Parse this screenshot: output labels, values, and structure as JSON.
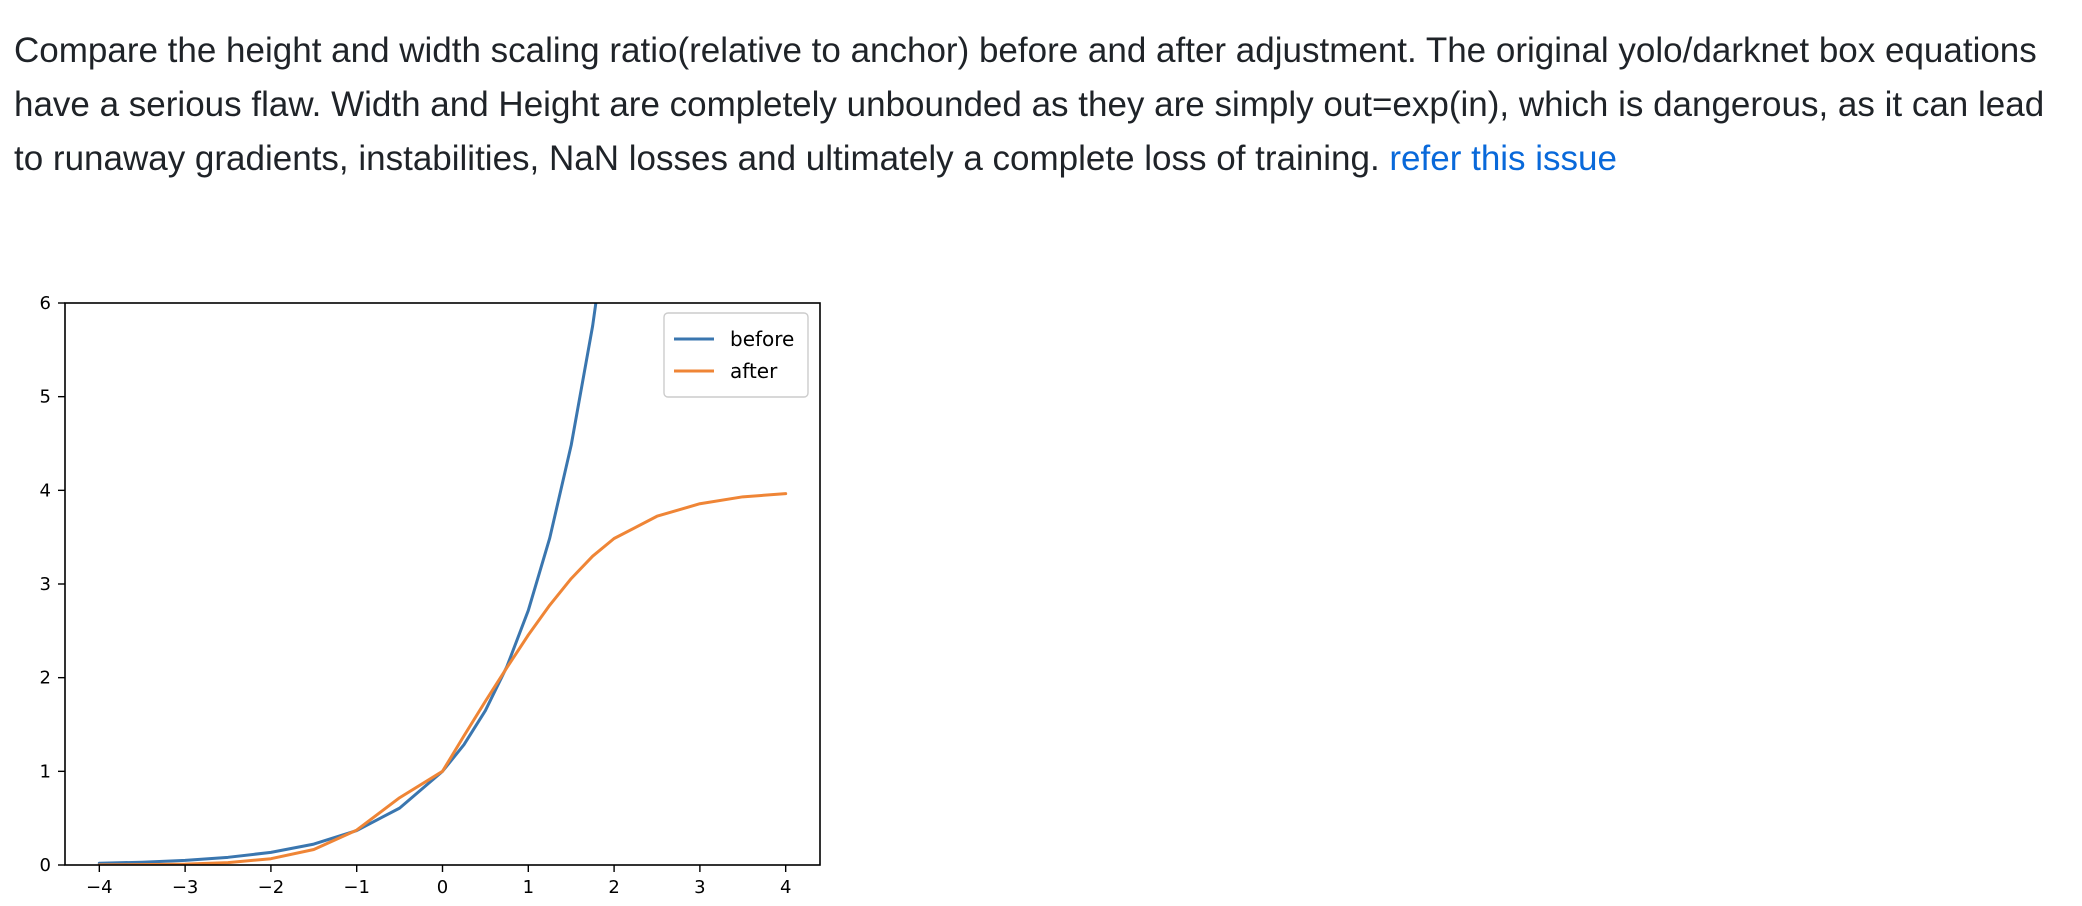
{
  "text": {
    "paragraph": "Compare the height and width scaling ratio(relative to anchor) before and after adjustment. The original yolo/darknet box equations have a serious flaw. Width and Height are completely unbounded as they are simply out=exp(in), which is dangerous, as it can lead to runaway gradients, instabilities, NaN losses and ultimately a complete loss of training.",
    "link": "refer this issue"
  },
  "chart_data": {
    "type": "line",
    "title": "",
    "xlabel": "",
    "ylabel": "",
    "xlim": [
      -4.4,
      4.4
    ],
    "ylim": [
      0,
      6
    ],
    "grid": false,
    "legend_position": "top-right",
    "x_ticks": [
      "−4",
      "−3",
      "−2",
      "−1",
      "0",
      "1",
      "2",
      "3",
      "4"
    ],
    "y_ticks": [
      "0",
      "1",
      "2",
      "3",
      "4",
      "5",
      "6"
    ],
    "x": [
      -4,
      -3.5,
      -3,
      -2.5,
      -2,
      -1.5,
      -1,
      -0.5,
      0,
      0.25,
      0.5,
      0.75,
      1,
      1.25,
      1.5,
      1.75,
      2,
      2.5,
      3,
      3.5,
      4
    ],
    "series": [
      {
        "name": "before",
        "color": "#3a76af",
        "values": [
          0.018,
          0.03,
          0.05,
          0.082,
          0.135,
          0.223,
          0.368,
          0.607,
          1.0,
          1.284,
          1.649,
          2.117,
          2.718,
          3.49,
          4.482,
          5.755,
          null,
          null,
          null,
          null,
          null
        ]
      },
      {
        "name": "after",
        "color": "#ef8536",
        "values": [
          0.0013,
          0.0036,
          0.0097,
          0.0259,
          0.0671,
          0.1654,
          0.3725,
          0.7181,
          1.0,
          1.3787,
          1.7483,
          2.1065,
          2.4554,
          2.7741,
          3.0577,
          3.2968,
          3.4858,
          3.7234,
          3.8569,
          3.9308,
          3.9643
        ]
      }
    ]
  }
}
